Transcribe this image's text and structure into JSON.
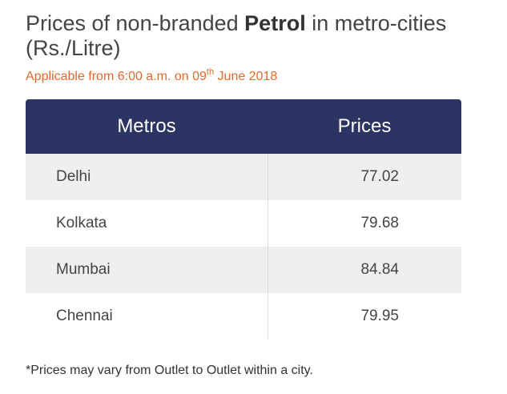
{
  "heading": {
    "text_before": "Prices of non-branded ",
    "bold_word": "Petrol",
    "text_after": " in metro-cities (Rs./Litre)"
  },
  "subheading": {
    "text_before": "Applicable from 6:00 a.m. on 09",
    "superscript": "th",
    "text_after": " June 2018"
  },
  "table": {
    "headers": [
      "Metros",
      "Prices"
    ],
    "rows": [
      {
        "city": "Delhi",
        "price": "77.02"
      },
      {
        "city": "Kolkata",
        "price": "79.68"
      },
      {
        "city": "Mumbai",
        "price": "84.84"
      },
      {
        "city": "Chennai",
        "price": "79.95"
      }
    ]
  },
  "footnote": "*Prices may vary from Outlet to Outlet within a city.",
  "colors": {
    "header_bg": "#2b3463",
    "accent": "#e8692c",
    "stripe": "#efefef"
  }
}
